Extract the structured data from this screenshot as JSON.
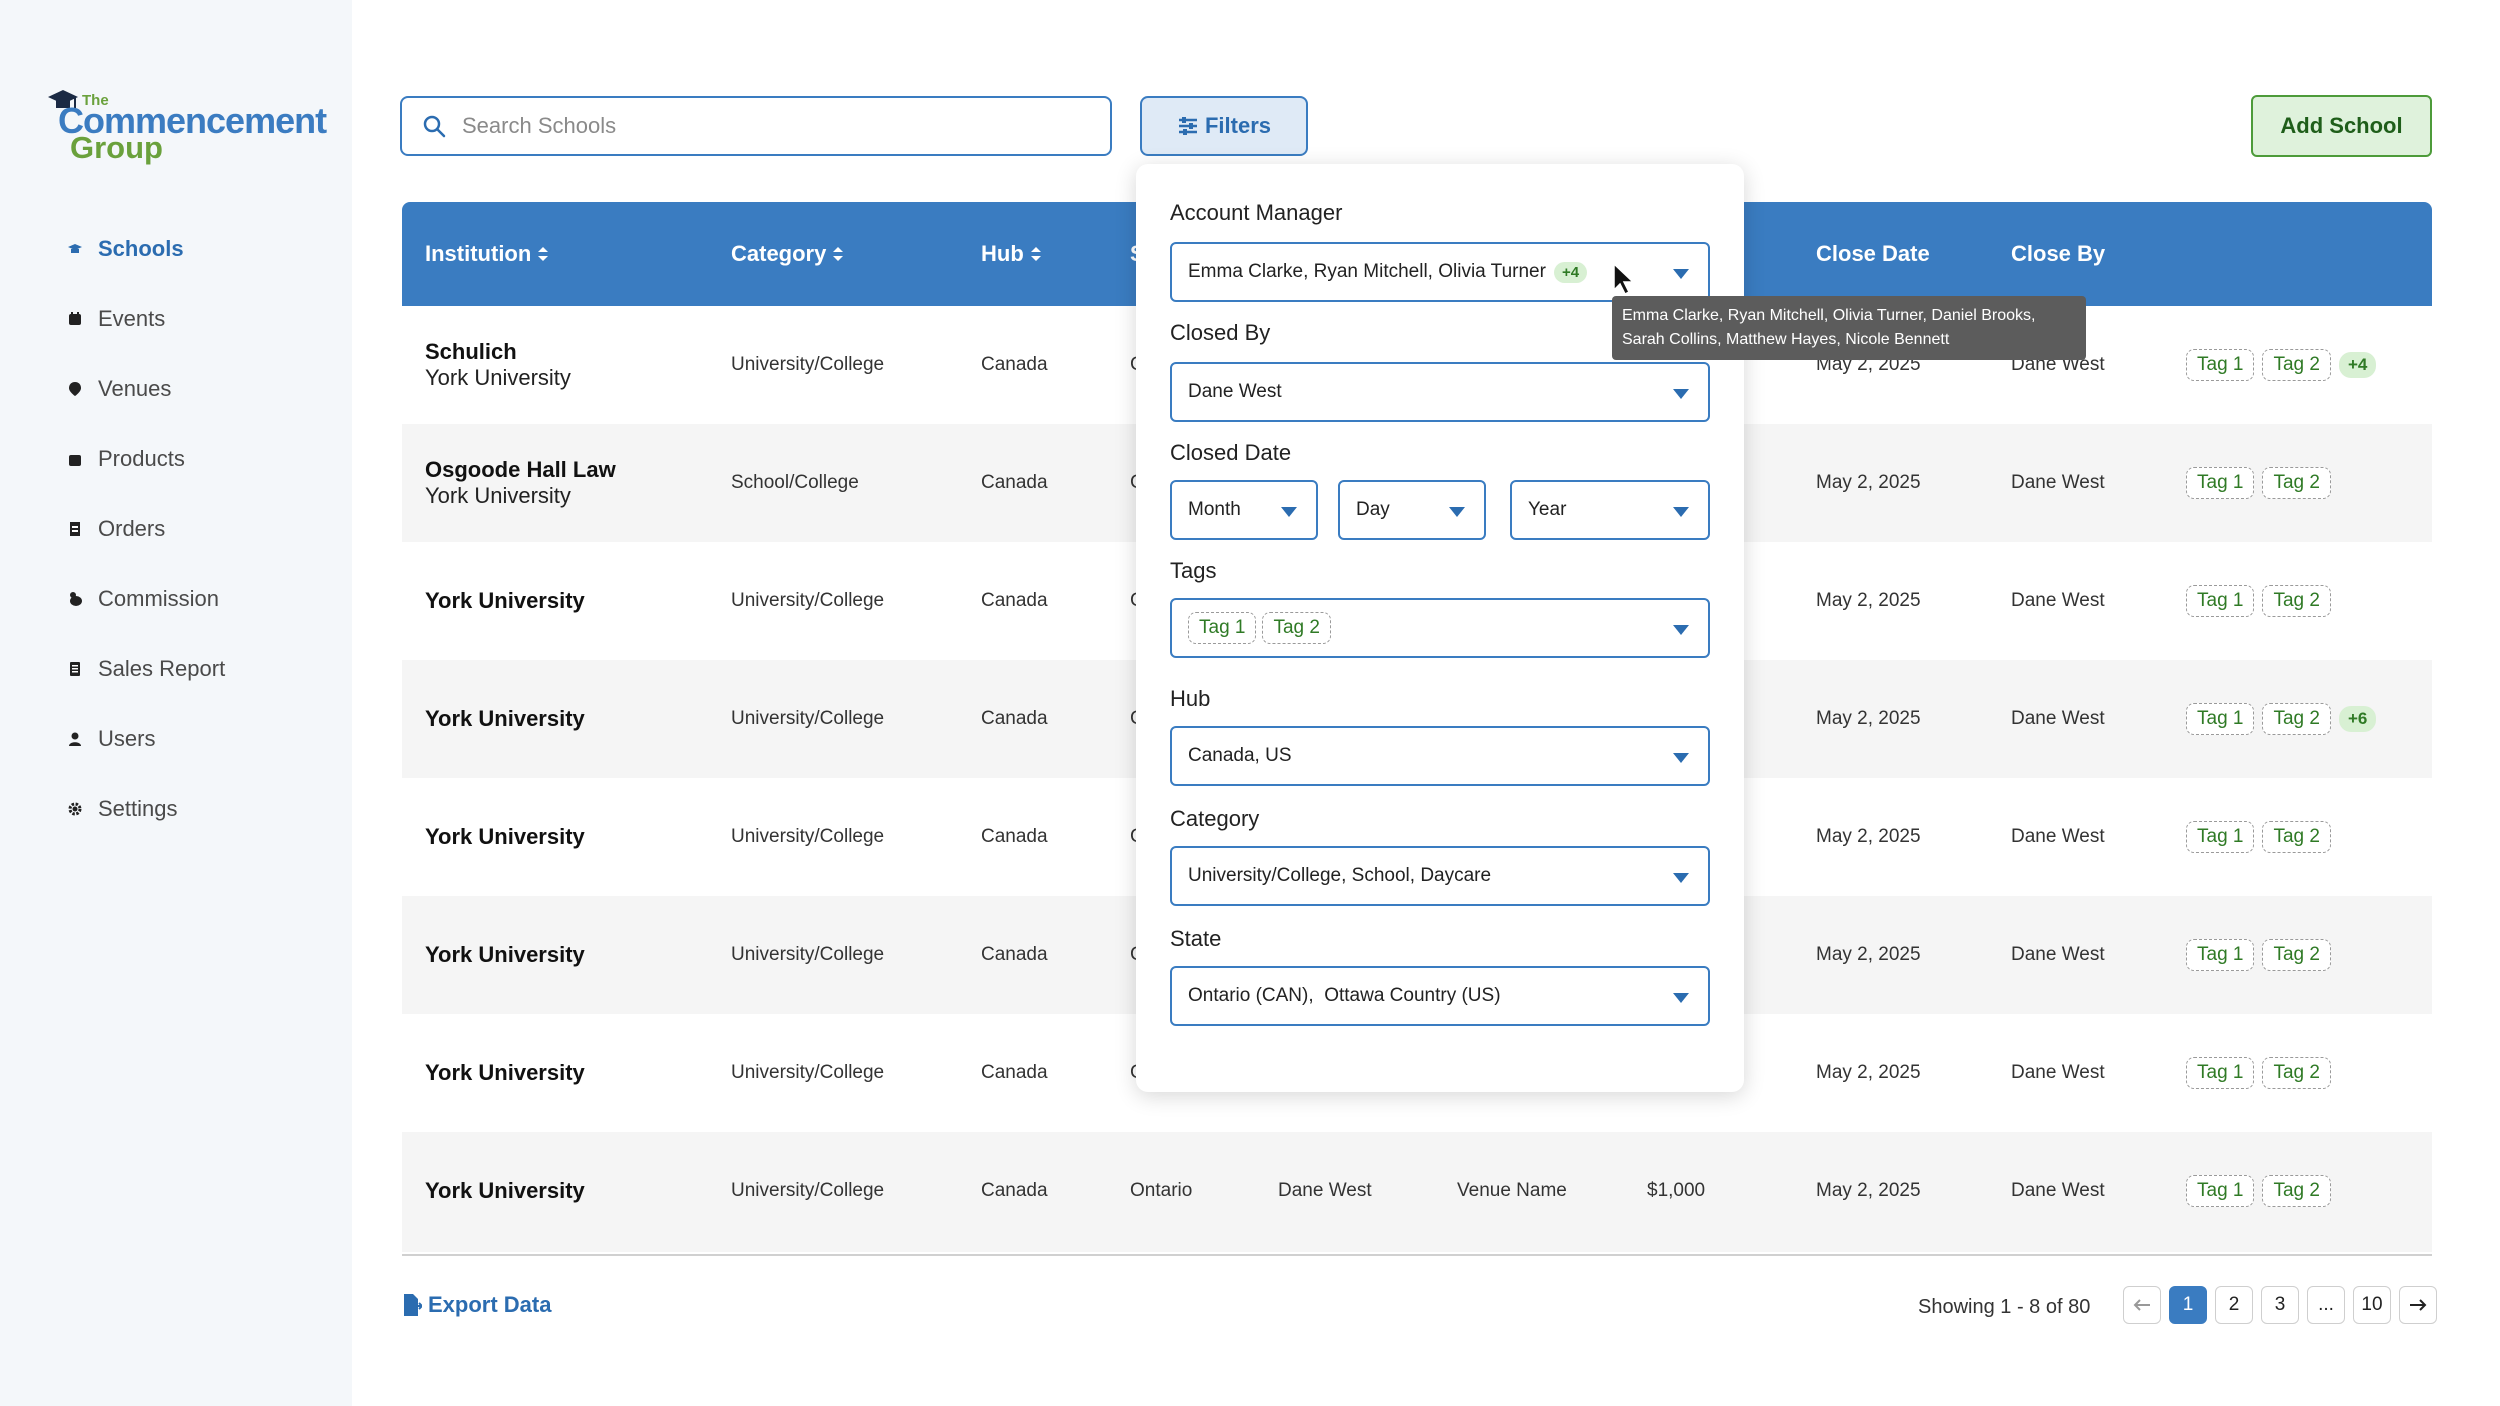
{
  "brand": {
    "the": "The",
    "commencement": "Commencement",
    "group": "Group"
  },
  "sidebar": {
    "items": [
      {
        "label": "Schools",
        "icon": "graduation-cap-icon",
        "active": true
      },
      {
        "label": "Events",
        "icon": "calendar-icon"
      },
      {
        "label": "Venues",
        "icon": "location-pin-icon"
      },
      {
        "label": "Products",
        "icon": "bag-icon"
      },
      {
        "label": "Orders",
        "icon": "receipt-icon"
      },
      {
        "label": "Commission",
        "icon": "coins-icon"
      },
      {
        "label": "Sales Report",
        "icon": "report-icon"
      },
      {
        "label": "Users",
        "icon": "user-icon"
      },
      {
        "label": "Settings",
        "icon": "gear-icon"
      }
    ]
  },
  "search": {
    "placeholder": "Search Schools"
  },
  "filters_button": "Filters",
  "add_button": "Add School",
  "table": {
    "headers": [
      "Institution",
      "Category",
      "Hub",
      "S",
      "",
      "",
      "",
      "Close Date",
      "Close By"
    ],
    "rows": [
      {
        "name": "Schulich",
        "sub": "York University",
        "category": "University/College",
        "hub": "Canada",
        "state": "C",
        "manager": "",
        "venue": "",
        "amount": "",
        "close_date": "May 2, 2025",
        "close_by": "Dane West",
        "tags": [
          "Tag 1",
          "Tag 2"
        ],
        "more": "+4"
      },
      {
        "name": "Osgoode Hall Law",
        "sub": "York University",
        "category": "School/College",
        "hub": "Canada",
        "state": "C",
        "manager": "",
        "venue": "",
        "amount": "",
        "close_date": "May 2, 2025",
        "close_by": "Dane West",
        "tags": [
          "Tag 1",
          "Tag 2"
        ],
        "more": ""
      },
      {
        "name": "York University",
        "sub": "",
        "category": "University/College",
        "hub": "Canada",
        "state": "C",
        "manager": "",
        "venue": "",
        "amount": "",
        "close_date": "May 2, 2025",
        "close_by": "Dane West",
        "tags": [
          "Tag 1",
          "Tag 2"
        ],
        "more": ""
      },
      {
        "name": "York University",
        "sub": "",
        "category": "University/College",
        "hub": "Canada",
        "state": "C",
        "manager": "",
        "venue": "",
        "amount": "",
        "close_date": "May 2, 2025",
        "close_by": "Dane West",
        "tags": [
          "Tag 1",
          "Tag 2"
        ],
        "more": "+6"
      },
      {
        "name": "York University",
        "sub": "",
        "category": "University/College",
        "hub": "Canada",
        "state": "C",
        "manager": "",
        "venue": "",
        "amount": "",
        "close_date": "May 2, 2025",
        "close_by": "Dane West",
        "tags": [
          "Tag 1",
          "Tag 2"
        ],
        "more": ""
      },
      {
        "name": "York University",
        "sub": "",
        "category": "University/College",
        "hub": "Canada",
        "state": "C",
        "manager": "",
        "venue": "",
        "amount": "",
        "close_date": "May 2, 2025",
        "close_by": "Dane West",
        "tags": [
          "Tag 1",
          "Tag 2"
        ],
        "more": ""
      },
      {
        "name": "York University",
        "sub": "",
        "category": "University/College",
        "hub": "Canada",
        "state": "C",
        "manager": "",
        "venue": "",
        "amount": "",
        "close_date": "May 2, 2025",
        "close_by": "Dane West",
        "tags": [
          "Tag 1",
          "Tag 2"
        ],
        "more": ""
      },
      {
        "name": "York University",
        "sub": "",
        "category": "University/College",
        "hub": "Canada",
        "state": "Ontario",
        "manager": "Dane West",
        "venue": "Venue Name",
        "amount": "$1,000",
        "close_date": "May 2, 2025",
        "close_by": "Dane West",
        "tags": [
          "Tag 1",
          "Tag 2"
        ],
        "more": ""
      }
    ]
  },
  "footer": {
    "export": "Export Data",
    "showing": "Showing 1 - 8 of 80",
    "pages": [
      "1",
      "2",
      "3",
      "...",
      "10"
    ]
  },
  "filters": {
    "account_manager": {
      "label": "Account Manager",
      "value": "Emma Clarke, Ryan Mitchell, Olivia Turner",
      "more": "+4"
    },
    "tooltip": {
      "line1": "Emma Clarke, Ryan Mitchell, Olivia Turner, Daniel Brooks,",
      "line2": "Sarah Collins, Matthew Hayes, Nicole Bennett"
    },
    "closed_by": {
      "label": "Closed By",
      "value": "Dane West"
    },
    "closed_date": {
      "label": "Closed Date",
      "month": "Month",
      "day": "Day",
      "year": "Year"
    },
    "tags": {
      "label": "Tags",
      "values": [
        "Tag 1",
        "Tag 2"
      ]
    },
    "hub": {
      "label": "Hub",
      "value": "Canada, US"
    },
    "category": {
      "label": "Category",
      "value": "University/College, School, Daycare"
    },
    "state": {
      "label": "State",
      "value": "Ontario (CAN),  Ottawa Country (US)"
    }
  },
  "colors": {
    "primary": "#3a7cc1",
    "accent_green": "#4d9b3a",
    "sidebar_bg": "#f4f7fa"
  }
}
